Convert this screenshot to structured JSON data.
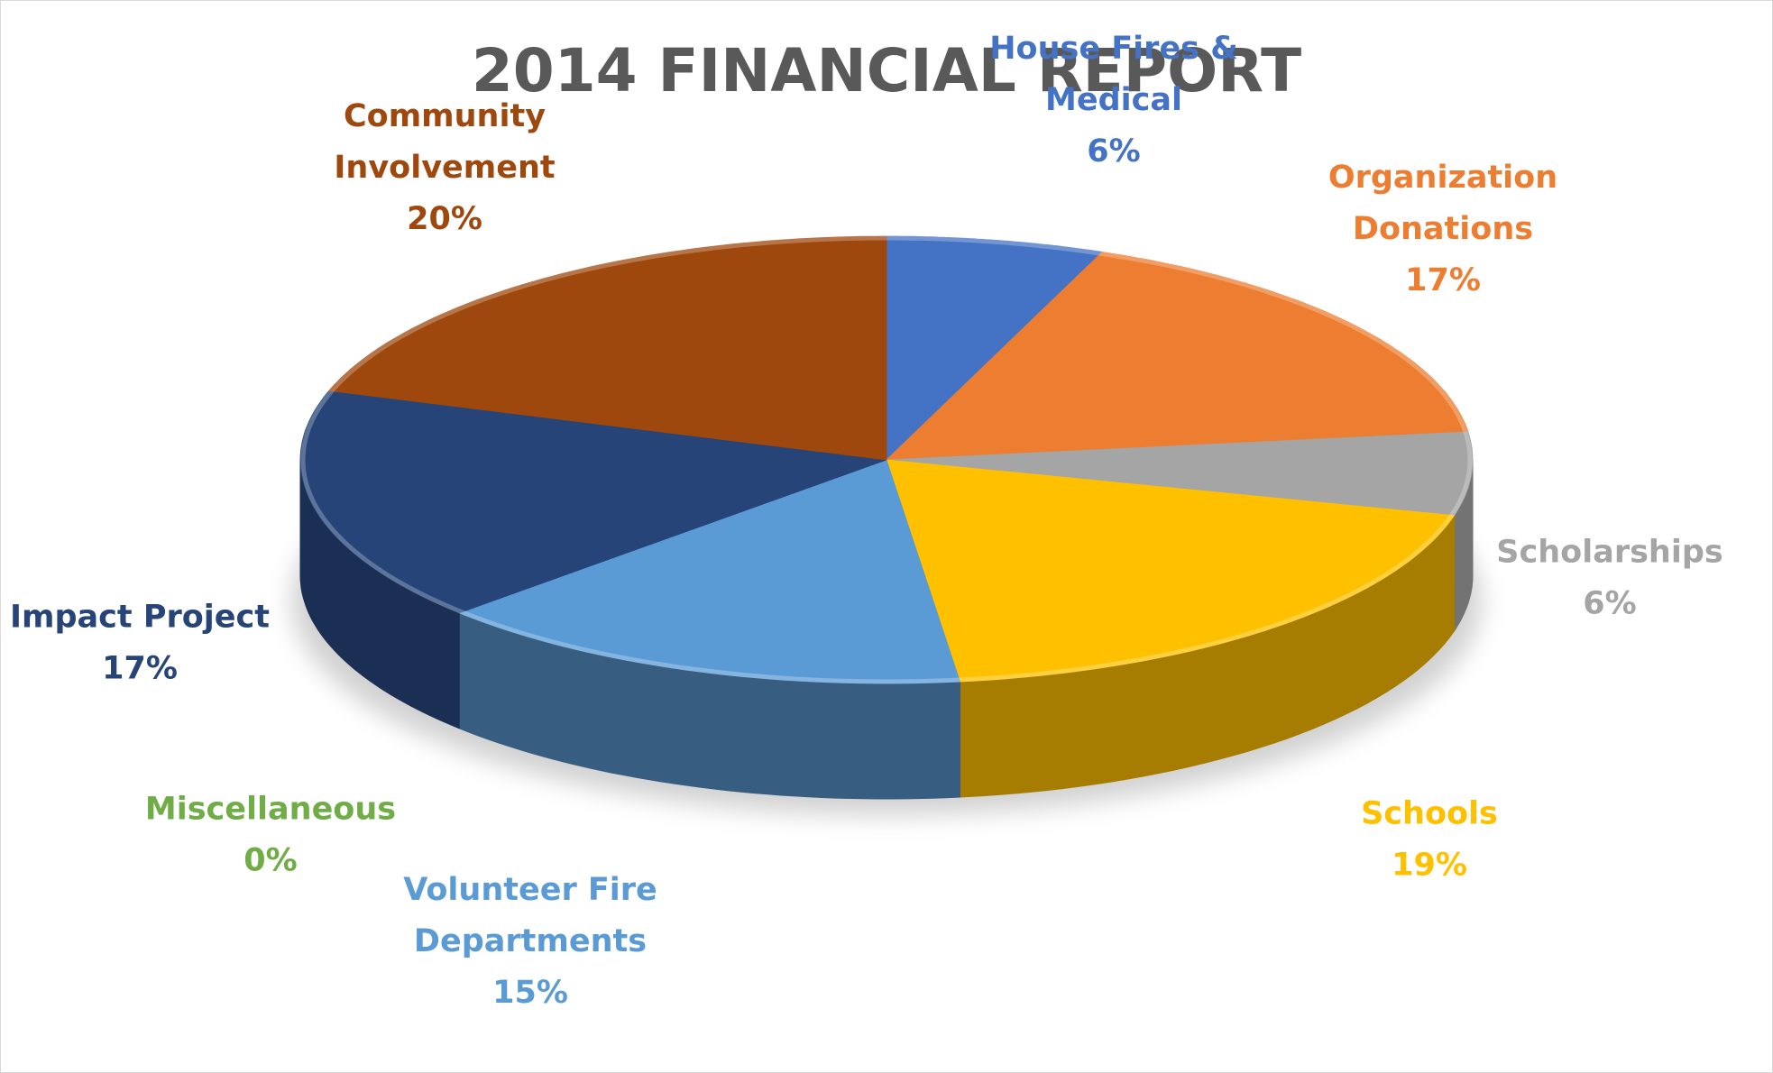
{
  "chart_data": {
    "type": "pie",
    "title": "2014 FINANCIAL REPORT",
    "slices": [
      {
        "label": [
          "House Fires &",
          "Medical"
        ],
        "percent_label": "6%",
        "value": 6,
        "color": "#4472C4"
      },
      {
        "label": [
          "Organization",
          "Donations"
        ],
        "percent_label": "17%",
        "value": 17,
        "color": "#ED7D31"
      },
      {
        "label": [
          "Scholarships"
        ],
        "percent_label": "6%",
        "value": 6,
        "color": "#A5A5A5"
      },
      {
        "label": [
          "Schools"
        ],
        "percent_label": "19%",
        "value": 19,
        "color": "#FFC000"
      },
      {
        "label": [
          "Volunteer Fire",
          "Departments"
        ],
        "percent_label": "15%",
        "value": 15,
        "color": "#5B9BD5"
      },
      {
        "label": [
          "Miscellaneous"
        ],
        "percent_label": "0%",
        "value": 0,
        "color": "#70AD47"
      },
      {
        "label": [
          "Impact Project"
        ],
        "percent_label": "17%",
        "value": 17,
        "color": "#264478"
      },
      {
        "label": [
          "Community",
          "Involvement"
        ],
        "percent_label": "20%",
        "value": 20,
        "color": "#9E480E"
      }
    ],
    "start_angle_deg": 0,
    "direction": "clockwise",
    "legend": "none",
    "data_labels": "outside"
  }
}
